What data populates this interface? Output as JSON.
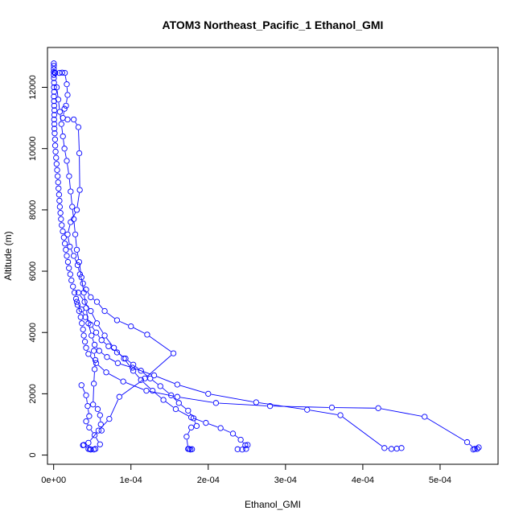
{
  "chart_data": {
    "type": "line",
    "title": "ATOM3 Northeast_Pacific_1 Ethanol_GMI",
    "xlabel": "Ethanol_GMI",
    "ylabel": "Altitude (m)",
    "xlim": [
      -8e-06,
      0.000575
    ],
    "ylim": [
      -300,
      13300
    ],
    "x_ticks": [
      0,
      0.0001,
      0.0002,
      0.0003,
      0.0004,
      0.0005
    ],
    "x_tick_labels": [
      "0e+00",
      "1e-04",
      "2e-04",
      "3e-04",
      "4e-04",
      "5e-04"
    ],
    "y_ticks": [
      0,
      2000,
      4000,
      6000,
      8000,
      10000,
      12000
    ],
    "y_tick_labels": [
      "0",
      "2000",
      "4000",
      "6000",
      "8000",
      "10000",
      "12000"
    ],
    "grid": false,
    "marker": "open-circle",
    "color": "#0000ff",
    "series": [
      {
        "values": [
          [
            2e-07,
            12780
          ],
          [
            3e-07,
            12700
          ],
          [
            2e-07,
            12600
          ],
          [
            1e-07,
            12500
          ],
          [
            2e-07,
            12400
          ],
          [
            3e-07,
            12300
          ],
          [
            5e-07,
            12150
          ],
          [
            4e-07,
            12000
          ],
          [
            6e-07,
            11850
          ],
          [
            3e-07,
            11700
          ],
          [
            5e-07,
            11550
          ],
          [
            7e-07,
            11400
          ],
          [
            1e-06,
            11250
          ],
          [
            8e-07,
            11100
          ],
          [
            6e-07,
            10950
          ],
          [
            9e-07,
            10800
          ],
          [
            1e-06,
            10650
          ],
          [
            1.3e-06,
            10500
          ],
          [
            1.8e-06,
            10300
          ],
          [
            2e-06,
            10100
          ],
          [
            2.5e-06,
            9900
          ],
          [
            3.2e-06,
            9700
          ],
          [
            3.8e-06,
            9500
          ],
          [
            4.5e-06,
            9300
          ],
          [
            5.2e-06,
            9100
          ],
          [
            5.8e-06,
            8900
          ],
          [
            6.3e-06,
            8700
          ],
          [
            7e-06,
            8500
          ],
          [
            7.5e-06,
            8300
          ],
          [
            8e-06,
            8100
          ],
          [
            8.8e-06,
            7900
          ],
          [
            9.5e-06,
            7700
          ],
          [
            1.05e-05,
            7500
          ],
          [
            1.18e-05,
            7300
          ],
          [
            1.32e-05,
            7100
          ],
          [
            1.45e-05,
            6900
          ],
          [
            1.58e-05,
            6700
          ],
          [
            1.7e-05,
            6500
          ],
          [
            1.85e-05,
            6300
          ],
          [
            1.98e-05,
            6100
          ],
          [
            2.15e-05,
            5900
          ],
          [
            2.3e-05,
            5700
          ],
          [
            2.5e-05,
            5500
          ],
          [
            2.7e-05,
            5300
          ],
          [
            2.9e-05,
            5100
          ],
          [
            3.1e-05,
            4900
          ],
          [
            3.3e-05,
            4700
          ],
          [
            3.5e-05,
            4500
          ],
          [
            3.65e-05,
            4300
          ],
          [
            3.8e-05,
            4100
          ],
          [
            3.9e-05,
            3900
          ],
          [
            4.05e-05,
            3700
          ],
          [
            4.2e-05,
            3500
          ],
          [
            4.5e-05,
            3300
          ],
          [
            5.5e-05,
            3000
          ],
          [
            6.8e-05,
            2700
          ],
          [
            9e-05,
            2400
          ],
          [
            0.00012,
            2100
          ],
          [
            0.00016,
            1900
          ],
          [
            0.00021,
            1700
          ],
          [
            0.00028,
            1600
          ],
          [
            0.00036,
            1550
          ],
          [
            0.00042,
            1530
          ],
          [
            0.00048,
            1250
          ],
          [
            0.000535,
            420
          ],
          [
            0.000545,
            200
          ],
          [
            0.00055,
            250
          ],
          [
            0.000548,
            200
          ],
          [
            0.000543,
            180
          ]
        ]
      },
      {
        "values": [
          [
            1.5e-06,
            12480
          ],
          [
            2e-06,
            12470
          ],
          [
            7.5e-06,
            12470
          ],
          [
            1.1e-05,
            12480
          ],
          [
            1.45e-05,
            12470
          ],
          [
            1.7e-05,
            12100
          ],
          [
            1.8e-05,
            11750
          ],
          [
            1.6e-05,
            11400
          ],
          [
            1.4e-05,
            11300
          ],
          [
            1.2e-05,
            11000
          ],
          [
            1.8e-05,
            10950
          ],
          [
            2.6e-05,
            10950
          ],
          [
            3.2e-05,
            10700
          ],
          [
            3.32e-05,
            9850
          ],
          [
            3.38e-05,
            8650
          ],
          [
            3e-05,
            8000
          ],
          [
            2.2e-05,
            7600
          ],
          [
            1.8e-05,
            7200
          ],
          [
            2.1e-05,
            6800
          ],
          [
            2.6e-05,
            6500
          ],
          [
            3.1e-05,
            6200
          ],
          [
            3.4e-05,
            5900
          ],
          [
            3.8e-05,
            5600
          ],
          [
            4.2e-05,
            5400
          ],
          [
            4.8e-05,
            5150
          ],
          [
            5.6e-05,
            5000
          ],
          [
            6.6e-05,
            4700
          ],
          [
            8.2e-05,
            4400
          ],
          [
            0.0001,
            4200
          ],
          [
            0.000121,
            3930
          ],
          [
            0.000155,
            3320
          ],
          [
            0.000118,
            2500
          ],
          [
            8.5e-05,
            1900
          ],
          [
            7.2e-05,
            1180
          ],
          [
            5.8e-05,
            800
          ],
          [
            4.5e-05,
            400
          ],
          [
            3.9e-05,
            330
          ],
          [
            3.8e-05,
            320
          ],
          [
            4.5e-05,
            200
          ],
          [
            5.2e-05,
            180
          ],
          [
            4.7e-05,
            190
          ]
        ]
      },
      {
        "values": [
          [
            4e-06,
            12000
          ],
          [
            6e-06,
            11600
          ],
          [
            8e-06,
            11200
          ],
          [
            1e-05,
            10800
          ],
          [
            1.2e-05,
            10400
          ],
          [
            1.4e-05,
            10000
          ],
          [
            1.7e-05,
            9600
          ],
          [
            2e-05,
            9100
          ],
          [
            2.2e-05,
            8600
          ],
          [
            2.4e-05,
            8100
          ],
          [
            2.6e-05,
            7700
          ],
          [
            2.8e-05,
            7200
          ],
          [
            3e-05,
            6700
          ],
          [
            3.3e-05,
            6300
          ],
          [
            3.6e-05,
            5800
          ],
          [
            3.9e-05,
            5300
          ],
          [
            4.2e-05,
            4800
          ],
          [
            4.5e-05,
            4300
          ],
          [
            4.9e-05,
            3900
          ],
          [
            5.3e-05,
            3600
          ],
          [
            5.9e-05,
            3400
          ],
          [
            6.9e-05,
            3200
          ],
          [
            8.3e-05,
            3000
          ],
          [
            0.000102,
            2850
          ],
          [
            0.00013,
            2600
          ],
          [
            0.00016,
            2300
          ],
          [
            0.0002,
            2000
          ],
          [
            0.000262,
            1720
          ],
          [
            0.000328,
            1480
          ],
          [
            0.000371,
            1300
          ],
          [
            0.000428,
            230
          ],
          [
            0.000437,
            200
          ],
          [
            0.000444,
            210
          ],
          [
            0.00045,
            230
          ]
        ]
      },
      {
        "values": [
          [
            3e-05,
            5000
          ],
          [
            3.6e-05,
            4750
          ],
          [
            4.1e-05,
            4500
          ],
          [
            4.8e-05,
            4250
          ],
          [
            5.5e-05,
            4000
          ],
          [
            6.2e-05,
            3750
          ],
          [
            7.1e-05,
            3550
          ],
          [
            8.2e-05,
            3350
          ],
          [
            9.3e-05,
            3150
          ],
          [
            0.000103,
            2950
          ],
          [
            0.000113,
            2750
          ],
          [
            0.000125,
            2500
          ],
          [
            0.000138,
            2250
          ],
          [
            0.000152,
            1950
          ],
          [
            0.000162,
            1700
          ],
          [
            0.000174,
            1450
          ],
          [
            0.000181,
            1200
          ],
          [
            0.000185,
            950
          ],
          [
            0.000178,
            900
          ],
          [
            0.000172,
            600
          ],
          [
            0.000174,
            200
          ],
          [
            0.000177,
            180
          ],
          [
            0.000179,
            190
          ],
          [
            0.000175,
            200
          ]
        ]
      },
      {
        "values": [
          [
            3.2e-05,
            5300
          ],
          [
            4e-05,
            5000
          ],
          [
            4.8e-05,
            4700
          ],
          [
            5.6e-05,
            4300
          ],
          [
            6.6e-05,
            3900
          ],
          [
            7.8e-05,
            3500
          ],
          [
            9.1e-05,
            3150
          ],
          [
            0.000103,
            2750
          ],
          [
            0.000113,
            2450
          ],
          [
            0.000128,
            2100
          ],
          [
            0.000142,
            1800
          ],
          [
            0.000158,
            1500
          ],
          [
            0.000178,
            1230
          ],
          [
            0.000197,
            1050
          ],
          [
            0.000216,
            880
          ],
          [
            0.000232,
            700
          ],
          [
            0.000242,
            500
          ],
          [
            0.000248,
            320
          ],
          [
            0.000251,
            330
          ],
          [
            0.000249,
            200
          ],
          [
            0.000244,
            180
          ],
          [
            0.000238,
            190
          ]
        ]
      },
      {
        "values": [
          [
            3.6e-05,
            2280
          ],
          [
            4.2e-05,
            1950
          ],
          [
            4.4e-05,
            1600
          ],
          [
            4.6e-05,
            1270
          ],
          [
            4.2e-05,
            1100
          ],
          [
            4.6e-05,
            900
          ],
          [
            5.3e-05,
            650
          ],
          [
            6e-05,
            350
          ],
          [
            5.4e-05,
            200
          ],
          [
            4.8e-05,
            180
          ]
        ]
      },
      {
        "values": [
          [
            5.2e-05,
            3400
          ],
          [
            5.4e-05,
            3100
          ],
          [
            5.3e-05,
            2800
          ],
          [
            5.2e-05,
            2330
          ],
          [
            5.1e-05,
            1650
          ],
          [
            5.7e-05,
            1500
          ],
          [
            6e-05,
            1300
          ],
          [
            6.1e-05,
            1000
          ],
          [
            6.2e-05,
            800
          ]
        ]
      }
    ]
  }
}
